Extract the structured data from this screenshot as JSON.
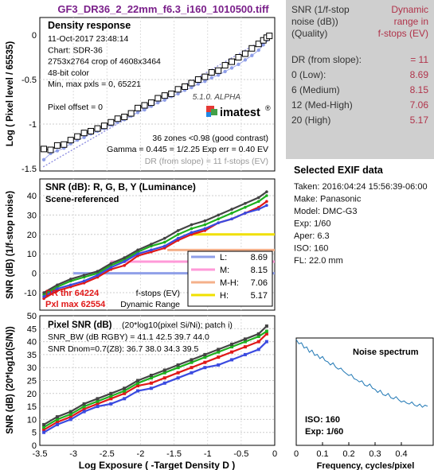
{
  "title": "GF3_DR36_2_22mm_f6.3_i160_1010500.tiff",
  "colors": {
    "title": "#7a1f8a",
    "dr_text": "#b0334a",
    "panel_bg": "#cfcfcf",
    "exif_bg": "#e6e6e6",
    "red": "#e01818",
    "green": "#1db01d",
    "blue": "#3a4ae0",
    "gray": "#444444",
    "yellow": "#f0e000",
    "pink": "#ff9ad8",
    "lightblue": "#8f9fe8",
    "orange": "#f4b08a"
  },
  "density": {
    "heading": "Density response",
    "info": [
      "11-Oct-2017 23:48:14",
      "Chart: SDR-36",
      "2753x2764 crop of 4608x3464",
      "48-bit color",
      "Min, max pxls = 0, 65221",
      "",
      "Pixel offset = 0"
    ],
    "zones": "36 zones <0.98 (good contrast)",
    "gamma": "Gamma = 0.445 = 1/2.25  Exp err = 0.40 EV",
    "dr_slope": "DR (from slope) = 11 f-stops (EV)",
    "logo_version": "5.1.0. ALPHA",
    "logo_text": "imatest",
    "logo_reg": "®",
    "ylabel": "Log ( Pixel level / 65535)",
    "yticks": [
      "0",
      "-0.5",
      "-1",
      "-1.5"
    ]
  },
  "snr": {
    "heading": "SNR (dB): R, G, B, Y (Luminance)",
    "subheading": "Scene-referenced",
    "ylabel": "SNR (dB) (1/f-stop noise)",
    "yticks": [
      "-10",
      "0",
      "10",
      "20",
      "30",
      "40"
    ],
    "legend": [
      {
        "label": "L:",
        "value": "8.69"
      },
      {
        "label": "M:",
        "value": "8.15"
      },
      {
        "label": "M-H:",
        "value": "7.06"
      },
      {
        "label": "H:",
        "value": "5.17"
      }
    ],
    "legend_title1": "f-stops (EV)",
    "legend_title2": "Dynamic Range",
    "dr_thr": "DR thr 64224",
    "pxl_max": "Pxl max 62554"
  },
  "pixel_snr": {
    "heading": "Pixel SNR (dB)",
    "heading_note": "(20*log10(pixel Si/Ni); patch i)",
    "line1": "SNR_BW (dB RGBY) = 41.1 42.5 39.7 44.0",
    "line2": "SNR Dnom=0.7(Z8): 36.7 38.0 34.3 39.5",
    "ylabel": "SNR (dB) (20*log10(S/N))",
    "yticks": [
      "0",
      "5",
      "10",
      "15",
      "20",
      "25",
      "30",
      "35",
      "40",
      "45",
      "50"
    ],
    "xticks": [
      "-3.5",
      "-3",
      "-2.5",
      "-2",
      "-1.5",
      "-1",
      "-0.5",
      "0"
    ],
    "xlabel": "Log Exposure ( -Target Density D )"
  },
  "summary": {
    "header_left": "SNR (1/f-stop noise (dB)) (Quality)",
    "header_left_lines": [
      "SNR (1/f-stop",
      "noise (dB))",
      "(Quality)"
    ],
    "header_right_lines": [
      "Dynamic",
      "range in",
      "f-stops (EV)"
    ],
    "rows": [
      {
        "label": "DR (from slope):",
        "value": "= 11"
      },
      {
        "label": "0   (Low):",
        "value": "8.69"
      },
      {
        "label": "6   (Medium)",
        "value": "8.15"
      },
      {
        "label": "12 (Med-High)",
        "value": "7.06"
      },
      {
        "label": "20 (High)",
        "value": "5.17"
      }
    ]
  },
  "exif": {
    "heading": "Selected EXIF data",
    "rows": [
      "Taken: 2016:04:24 15:56:39-06:00",
      "Make:  Panasonic",
      "Model: DMC-G3",
      "Exp:   1/60",
      "Aper:  6.3",
      "ISO:   160",
      "FL:    22.0 mm"
    ]
  },
  "noise": {
    "heading": "Noise spectrum",
    "iso": "ISO:    160",
    "exp": "Exp:    1/60",
    "xticks": [
      "0",
      "0.1",
      "0.2",
      "0.3",
      "0.4"
    ],
    "xlabel": "Frequency, cycles/pixel"
  },
  "chart_data": [
    {
      "type": "line",
      "title": "Density response",
      "xlabel": "",
      "ylabel": "Log ( Pixel level / 65535)",
      "xlim": [
        -3.5,
        0
      ],
      "ylim": [
        -1.5,
        0
      ],
      "series": [
        {
          "x": [
            -3.44,
            -3.34,
            -3.24,
            -3.14,
            -3.04,
            -2.94,
            -2.84,
            -2.74,
            -2.64,
            -2.54,
            -2.44,
            -2.34,
            -2.24,
            -2.14,
            -2.04,
            -1.94,
            -1.84,
            -1.74,
            -1.64,
            -1.54,
            -1.44,
            -1.34,
            -1.24,
            -1.14,
            -1.04,
            -0.94,
            -0.84,
            -0.74,
            -0.64,
            -0.54,
            -0.44,
            -0.34,
            -0.24,
            -0.17,
            -0.12,
            -0.08
          ],
          "y": [
            -1.28,
            -1.29,
            -1.24,
            -1.23,
            -1.18,
            -1.14,
            -1.1,
            -1.08,
            -1.05,
            -1.02,
            -0.98,
            -0.94,
            -0.92,
            -0.88,
            -0.82,
            -0.79,
            -0.76,
            -0.71,
            -0.68,
            -0.66,
            -0.61,
            -0.58,
            -0.54,
            -0.5,
            -0.47,
            -0.42,
            -0.4,
            -0.34,
            -0.3,
            -0.25,
            -0.21,
            -0.15,
            -0.1,
            -0.06,
            -0.03,
            -0.01
          ]
        },
        {
          "x": [
            -3.44,
            -3.34,
            -3.24,
            -3.14,
            -3.04,
            -2.94,
            -2.84,
            -2.74,
            -2.64,
            -2.54,
            -2.44,
            -2.34,
            -2.24,
            -2.14,
            -2.04,
            -1.94,
            -1.84,
            -1.74,
            -1.64,
            -1.54,
            -1.44,
            -1.34,
            -1.24,
            -1.14,
            -1.04,
            -0.94,
            -0.84,
            -0.74,
            -0.64,
            -0.54,
            -0.44,
            -0.34,
            -0.24,
            -0.17,
            -0.12,
            -0.08
          ],
          "y": [
            -1.4,
            -1.33,
            -1.3,
            -1.27,
            -1.22,
            -1.18,
            -1.15,
            -1.11,
            -1.08,
            -1.05,
            -1.01,
            -0.98,
            -0.95,
            -0.91,
            -0.87,
            -0.84,
            -0.8,
            -0.76,
            -0.73,
            -0.69,
            -0.66,
            -0.62,
            -0.59,
            -0.55,
            -0.52,
            -0.48,
            -0.45,
            -0.41,
            -0.37,
            -0.33,
            -0.28,
            -0.23,
            -0.17,
            -0.11,
            -0.06,
            -0.02
          ]
        }
      ]
    },
    {
      "type": "line",
      "title": "SNR (dB): R, G, B, Y (Luminance)",
      "ylabel": "SNR (dB) (1/f-stop noise)",
      "xlim": [
        -3.5,
        0
      ],
      "ylim": [
        -15,
        45
      ],
      "dr_levels": {
        "L": 0,
        "M": 6,
        "M-H": 12,
        "H": 20
      },
      "series": [
        {
          "name": "R",
          "x": [
            -3.44,
            -3.24,
            -3.04,
            -2.84,
            -2.64,
            -2.44,
            -2.24,
            -2.04,
            -1.84,
            -1.64,
            -1.44,
            -1.24,
            -1.04,
            -0.84,
            -0.64,
            -0.44,
            -0.24,
            -0.12
          ],
          "y": [
            -13,
            -9,
            -7,
            -5,
            -2,
            2,
            4,
            9,
            11,
            13,
            17,
            20,
            22,
            26,
            28,
            31,
            34,
            37
          ]
        },
        {
          "name": "G",
          "x": [
            -3.44,
            -3.24,
            -3.04,
            -2.84,
            -2.64,
            -2.44,
            -2.24,
            -2.04,
            -1.84,
            -1.64,
            -1.44,
            -1.24,
            -1.04,
            -0.84,
            -0.64,
            -0.44,
            -0.24,
            -0.12
          ],
          "y": [
            -11,
            -7,
            -4,
            -2,
            0,
            4,
            7,
            11,
            14,
            16,
            20,
            23,
            25,
            28,
            31,
            34,
            37,
            40
          ]
        },
        {
          "name": "B",
          "x": [
            -3.44,
            -3.24,
            -3.04,
            -2.84,
            -2.64,
            -2.44,
            -2.24,
            -2.04,
            -1.84,
            -1.64,
            -1.44,
            -1.24,
            -1.04,
            -0.84,
            -0.64,
            -0.44,
            -0.24,
            -0.12
          ],
          "y": [
            -12,
            -8,
            -6,
            -4,
            -1,
            3,
            6,
            10,
            12,
            14,
            18,
            21,
            23,
            26,
            28,
            31,
            33,
            35
          ]
        },
        {
          "name": "Y",
          "x": [
            -3.44,
            -3.24,
            -3.04,
            -2.84,
            -2.64,
            -2.44,
            -2.24,
            -2.04,
            -1.84,
            -1.64,
            -1.44,
            -1.24,
            -1.04,
            -0.84,
            -0.64,
            -0.44,
            -0.24,
            -0.12
          ],
          "y": [
            -10,
            -6,
            -3,
            -1,
            1,
            5,
            8,
            12,
            15,
            18,
            22,
            25,
            27,
            30,
            33,
            36,
            39,
            42
          ]
        }
      ]
    },
    {
      "type": "line",
      "title": "Pixel SNR (dB)",
      "xlabel": "Log Exposure ( -Target Density D )",
      "ylabel": "SNR (dB) (20*log10(S/N))",
      "xlim": [
        -3.5,
        0
      ],
      "ylim": [
        0,
        50
      ],
      "series": [
        {
          "name": "R",
          "x": [
            -3.44,
            -3.24,
            -3.04,
            -2.84,
            -2.64,
            -2.44,
            -2.24,
            -2.04,
            -1.84,
            -1.64,
            -1.44,
            -1.24,
            -1.04,
            -0.84,
            -0.64,
            -0.44,
            -0.24,
            -0.12
          ],
          "y": [
            6,
            9,
            11,
            14,
            16,
            18,
            20,
            23,
            24,
            26,
            28,
            30,
            32,
            34,
            36,
            38,
            40,
            43
          ]
        },
        {
          "name": "G",
          "x": [
            -3.44,
            -3.24,
            -3.04,
            -2.84,
            -2.64,
            -2.44,
            -2.24,
            -2.04,
            -1.84,
            -1.64,
            -1.44,
            -1.24,
            -1.04,
            -0.84,
            -0.64,
            -0.44,
            -0.24,
            -0.12
          ],
          "y": [
            7,
            10,
            12,
            15,
            17,
            19,
            21,
            24,
            26,
            28,
            30,
            32,
            34,
            36,
            38,
            40,
            42,
            44
          ]
        },
        {
          "name": "B",
          "x": [
            -3.44,
            -3.24,
            -3.04,
            -2.84,
            -2.64,
            -2.44,
            -2.24,
            -2.04,
            -1.84,
            -1.64,
            -1.44,
            -1.24,
            -1.04,
            -0.84,
            -0.64,
            -0.44,
            -0.24,
            -0.12
          ],
          "y": [
            5,
            8,
            10,
            13,
            15,
            16,
            18,
            21,
            22,
            24,
            26,
            28,
            30,
            31,
            33,
            35,
            37,
            40
          ]
        },
        {
          "name": "Y",
          "x": [
            -3.44,
            -3.24,
            -3.04,
            -2.84,
            -2.64,
            -2.44,
            -2.24,
            -2.04,
            -1.84,
            -1.64,
            -1.44,
            -1.24,
            -1.04,
            -0.84,
            -0.64,
            -0.44,
            -0.24,
            -0.12
          ],
          "y": [
            8,
            11,
            13,
            16,
            18,
            20,
            22,
            25,
            27,
            29,
            31,
            33,
            35,
            37,
            39,
            41,
            43,
            46
          ]
        }
      ]
    },
    {
      "type": "line",
      "title": "Noise spectrum",
      "xlabel": "Frequency, cycles/pixel",
      "xlim": [
        0,
        0.5
      ],
      "ylim": [
        0,
        1
      ],
      "series": [
        {
          "x": [
            0,
            0.01,
            0.02,
            0.03,
            0.04,
            0.05,
            0.06,
            0.07,
            0.08,
            0.09,
            0.1,
            0.11,
            0.12,
            0.13,
            0.14,
            0.15,
            0.16,
            0.17,
            0.18,
            0.19,
            0.2,
            0.21,
            0.22,
            0.23,
            0.24,
            0.25,
            0.26,
            0.27,
            0.28,
            0.29,
            0.3,
            0.31,
            0.32,
            0.33,
            0.34,
            0.35,
            0.36,
            0.37,
            0.38,
            0.39,
            0.4,
            0.41,
            0.42,
            0.43,
            0.44,
            0.45,
            0.46,
            0.47,
            0.48,
            0.49,
            0.5
          ],
          "y": [
            1,
            0.96,
            0.97,
            0.92,
            0.93,
            0.88,
            0.9,
            0.85,
            0.86,
            0.82,
            0.84,
            0.8,
            0.79,
            0.76,
            0.78,
            0.74,
            0.72,
            0.73,
            0.7,
            0.68,
            0.66,
            0.67,
            0.63,
            0.62,
            0.6,
            0.61,
            0.57,
            0.56,
            0.58,
            0.54,
            0.53,
            0.5,
            0.52,
            0.48,
            0.47,
            0.49,
            0.45,
            0.44,
            0.46,
            0.43,
            0.41,
            0.42,
            0.4,
            0.39,
            0.41,
            0.38,
            0.37,
            0.39,
            0.36,
            0.38,
            0.37
          ]
        }
      ]
    }
  ]
}
